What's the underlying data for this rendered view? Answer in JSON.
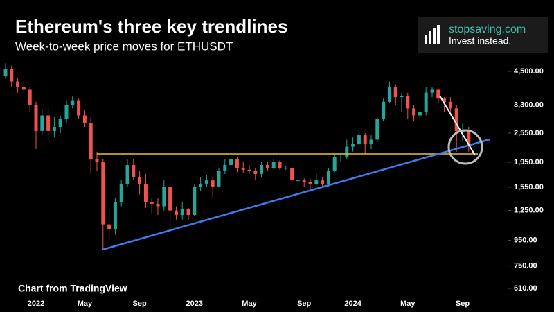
{
  "chart_data": {
    "type": "candlestick",
    "title": "Ethereum's three key trendlines",
    "subtitle": "Week-to-week price moves for ETHUSDT",
    "brand": "stopsaving.com",
    "tagline": "Invest instead.",
    "source": "Chart from TradingView",
    "up_color": "#26a69a",
    "down_color": "#ef5350",
    "ylog": true,
    "ylim": [
      560,
      5000
    ],
    "yticks": [
      {
        "value": 4500,
        "label": "4,500.00"
      },
      {
        "value": 3300,
        "label": "3,300.00"
      },
      {
        "value": 2550,
        "label": "2,550.00"
      },
      {
        "value": 1950,
        "label": "1,950.00"
      },
      {
        "value": 1550,
        "label": "1,550.00"
      },
      {
        "value": 1250,
        "label": "1,250.00"
      },
      {
        "value": 950,
        "label": "950.00"
      },
      {
        "value": 750,
        "label": "750.00"
      },
      {
        "value": 610,
        "label": "610.00"
      }
    ],
    "categories": [
      null,
      null,
      null,
      null,
      null,
      "2022",
      null,
      null,
      null,
      null,
      null,
      null,
      null,
      "May",
      null,
      null,
      null,
      null,
      null,
      null,
      null,
      null,
      "Sep",
      null,
      null,
      null,
      null,
      null,
      null,
      null,
      null,
      "2023",
      null,
      null,
      null,
      null,
      null,
      null,
      null,
      null,
      "May",
      null,
      null,
      null,
      null,
      null,
      null,
      null,
      null,
      "Sep",
      null,
      null,
      null,
      null,
      null,
      null,
      null,
      "2024",
      null,
      null,
      null,
      null,
      null,
      null,
      null,
      null,
      "May",
      null,
      null,
      null,
      null,
      null,
      null,
      null,
      null,
      "Sep",
      null
    ],
    "open": [
      4300,
      4600,
      4100,
      3900,
      3800,
      3300,
      2600,
      3000,
      2600,
      2700,
      2900,
      3300,
      3450,
      3000,
      2800,
      2000,
      1950,
      1100,
      1050,
      1350,
      1600,
      1900,
      1700,
      1600,
      1350,
      1330,
      1300,
      1550,
      1250,
      1200,
      1270,
      1200,
      1550,
      1600,
      1650,
      1560,
      1800,
      1900,
      2000,
      1850,
      1820,
      1800,
      1750,
      1900,
      1850,
      1950,
      1850,
      1850,
      1650,
      1650,
      1630,
      1600,
      1650,
      1600,
      1800,
      2050,
      2050,
      2250,
      2300,
      2500,
      2300,
      2400,
      2900,
      3400,
      3900,
      3550,
      3600,
      3200,
      3000,
      3100,
      3700,
      3800,
      3500,
      3400,
      3200,
      2600,
      2600
    ],
    "high": [
      4850,
      4750,
      4250,
      4100,
      3900,
      3400,
      3150,
      3250,
      2950,
      3000,
      3450,
      3580,
      3500,
      3150,
      2950,
      2150,
      2000,
      1280,
      1400,
      1650,
      2000,
      2000,
      1800,
      1750,
      1400,
      1400,
      1650,
      1600,
      1300,
      1350,
      1280,
      1600,
      1700,
      1740,
      1700,
      1850,
      2000,
      2130,
      2050,
      1950,
      1900,
      1850,
      1950,
      1960,
      2020,
      1980,
      1880,
      1870,
      1700,
      1680,
      1680,
      1750,
      1700,
      1850,
      2100,
      2130,
      2400,
      2450,
      2700,
      2550,
      2500,
      2950,
      3500,
      4100,
      4000,
      3700,
      3700,
      3300,
      3200,
      3900,
      3900,
      3850,
      3550,
      3550,
      3300,
      2800,
      2700
    ],
    "low": [
      4200,
      3900,
      3700,
      3650,
      3100,
      2200,
      2500,
      2400,
      2450,
      2550,
      2800,
      3200,
      2900,
      2700,
      1750,
      1800,
      880,
      950,
      1000,
      1300,
      1550,
      1650,
      1450,
      1280,
      1220,
      1200,
      1250,
      1080,
      1150,
      1150,
      1150,
      1190,
      1500,
      1550,
      1400,
      1550,
      1750,
      1880,
      1780,
      1760,
      1750,
      1650,
      1700,
      1800,
      1820,
      1820,
      1820,
      1550,
      1600,
      1560,
      1530,
      1570,
      1550,
      1560,
      1780,
      1950,
      2000,
      2150,
      2250,
      2100,
      2200,
      2350,
      2850,
      3350,
      3300,
      3100,
      2900,
      2850,
      2850,
      3000,
      3550,
      3350,
      3100,
      3100,
      2150,
      2350,
      2150
    ],
    "close": [
      4600,
      4100,
      3900,
      3800,
      3300,
      2600,
      3000,
      2600,
      2700,
      2900,
      3300,
      3450,
      3000,
      2800,
      2000,
      1950,
      1100,
      1050,
      1350,
      1600,
      1900,
      1700,
      1600,
      1350,
      1330,
      1300,
      1550,
      1250,
      1200,
      1270,
      1200,
      1550,
      1600,
      1650,
      1560,
      1800,
      1900,
      2000,
      1850,
      1820,
      1800,
      1750,
      1900,
      1850,
      1950,
      1850,
      1850,
      1650,
      1650,
      1630,
      1600,
      1650,
      1600,
      1800,
      2050,
      2050,
      2250,
      2300,
      2500,
      2300,
      2400,
      2900,
      3400,
      3900,
      3550,
      3600,
      3200,
      3000,
      3100,
      3700,
      3800,
      3500,
      3400,
      3200,
      2600,
      2600,
      2300
    ]
  }
}
